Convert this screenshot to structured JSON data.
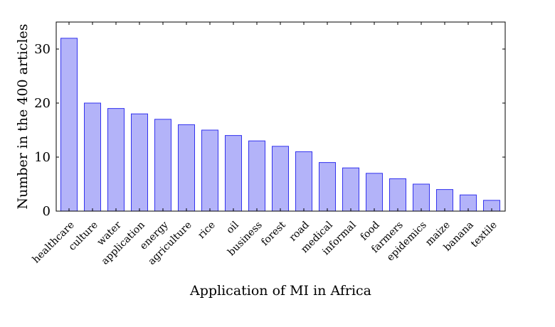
{
  "chart_data": {
    "type": "bar",
    "title": "",
    "xlabel": "Application of MI in Africa",
    "ylabel": "Number in the 400 articles",
    "categories": [
      "healthcare",
      "culture",
      "water",
      "application",
      "energy",
      "agriculture",
      "rice",
      "oil",
      "business",
      "forest",
      "road",
      "medical",
      "informal",
      "food",
      "farmers",
      "epidemics",
      "maize",
      "banana",
      "textile"
    ],
    "values": [
      32,
      20,
      19,
      18,
      17,
      16,
      15,
      14,
      13,
      12,
      11,
      9,
      8,
      7,
      6,
      5,
      4,
      3,
      2
    ],
    "ylim": [
      0,
      35
    ],
    "yticks": [
      0,
      10,
      20,
      30
    ],
    "grid": false,
    "legend": "none",
    "colors": {
      "bar_fill": "#b3b3f9",
      "bar_stroke": "#3333ee"
    }
  }
}
